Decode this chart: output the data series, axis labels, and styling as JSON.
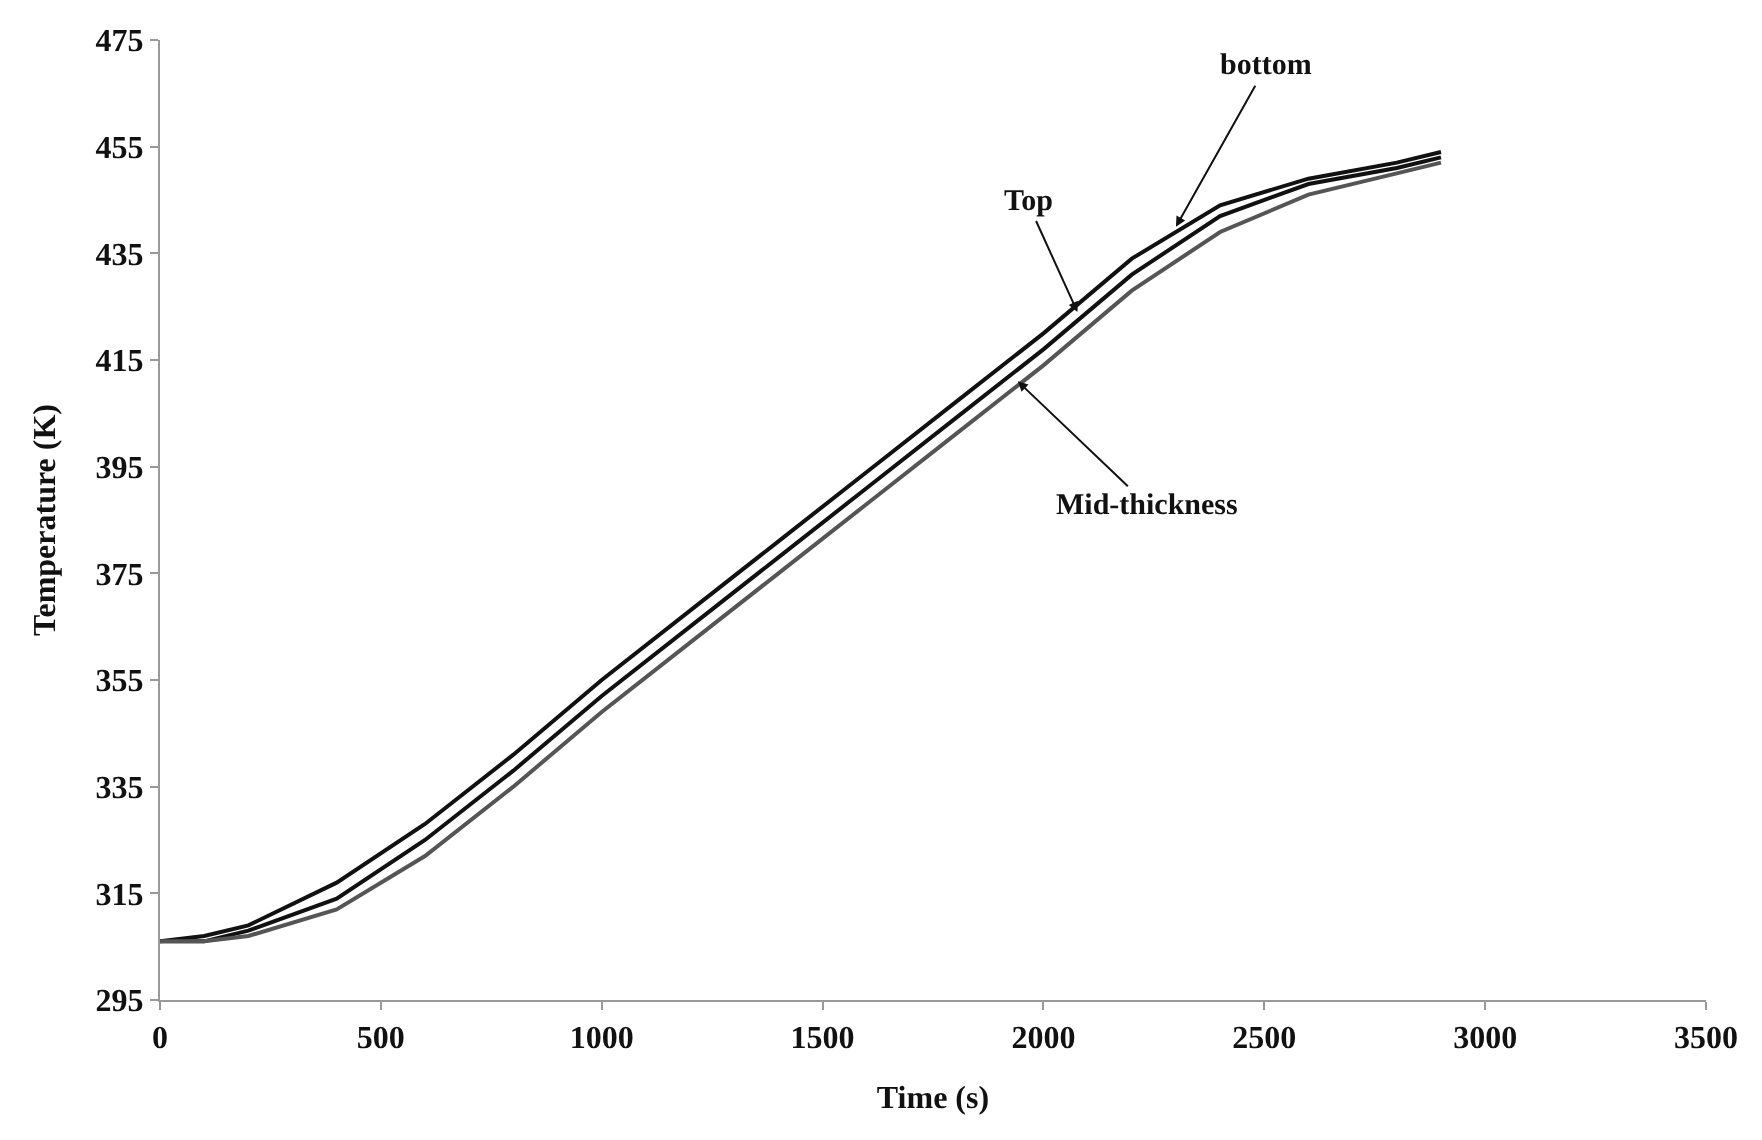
{
  "chart_data": {
    "type": "line",
    "xlabel": "Time (s)",
    "ylabel": "Temperature (K)",
    "x": [
      0,
      100,
      200,
      400,
      600,
      800,
      1000,
      1200,
      1400,
      1600,
      1800,
      2000,
      2200,
      2400,
      2600,
      2800,
      2900
    ],
    "series": [
      {
        "color": "#111111",
        "values": [
          306,
          307,
          309,
          317,
          328,
          341,
          355,
          368,
          381,
          394,
          407,
          420,
          434,
          444,
          449,
          452,
          454
        ]
      },
      {
        "color": "#111111",
        "values": [
          306,
          306,
          308,
          314,
          325,
          338,
          352,
          365,
          378,
          391,
          404,
          417,
          431,
          442,
          448,
          451,
          453
        ]
      },
      {
        "color": "#555555",
        "values": [
          306,
          306,
          307,
          312,
          322,
          335,
          349,
          362,
          375,
          388,
          401,
          414,
          428,
          439,
          446,
          450,
          452
        ]
      }
    ],
    "annotations": [
      {
        "text": "bottom",
        "x": 2300,
        "y": 440
      },
      {
        "text": "Top",
        "x": 2077,
        "y": 424
      },
      {
        "text": "Mid-thickness",
        "x": 1942,
        "y": 411
      }
    ],
    "xlim": [
      0,
      3500
    ],
    "xticks": [
      0,
      500,
      1000,
      1500,
      2000,
      2500,
      3000,
      3500
    ],
    "ylim": [
      295,
      475
    ],
    "yticks": [
      295,
      315,
      335,
      355,
      375,
      395,
      415,
      435,
      455,
      475
    ],
    "marker": "none",
    "line_style": "solid"
  }
}
